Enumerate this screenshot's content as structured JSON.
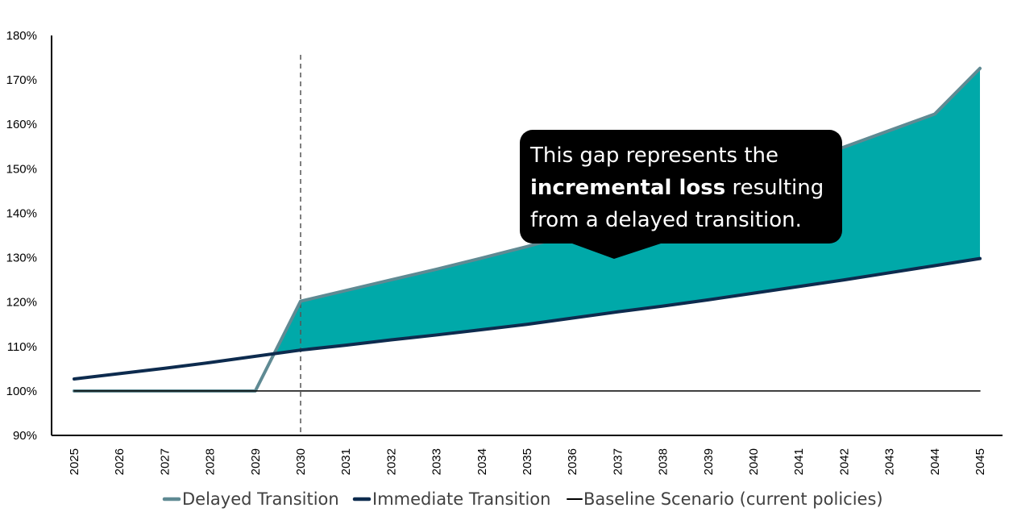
{
  "chart_data": {
    "type": "line",
    "title": "",
    "xlabel": "",
    "ylabel": "",
    "x": [
      2025,
      2026,
      2027,
      2028,
      2029,
      2030,
      2031,
      2032,
      2033,
      2034,
      2035,
      2036,
      2037,
      2038,
      2039,
      2040,
      2041,
      2042,
      2043,
      2044,
      2045
    ],
    "ylim": [
      90,
      180
    ],
    "y_ticks": [
      "90%",
      "100%",
      "110%",
      "120%",
      "130%",
      "140%",
      "150%",
      "160%",
      "170%",
      "180%"
    ],
    "y_tick_values": [
      90,
      100,
      110,
      120,
      130,
      140,
      150,
      160,
      170,
      180
    ],
    "series": [
      {
        "name": "Delayed Transition",
        "color": "#5f8a93",
        "values": [
          100,
          100,
          100,
          100,
          100,
          120.2,
          122.6,
          125.0,
          127.4,
          129.9,
          132.5,
          135.3,
          138.2,
          141.2,
          144.4,
          147.8,
          151.3,
          154.9,
          158.6,
          162.3,
          172.6
        ]
      },
      {
        "name": "Immediate Transition",
        "color": "#0d2b4e",
        "values": [
          102.7,
          103.9,
          105.1,
          106.4,
          107.8,
          109.2,
          110.3,
          111.5,
          112.6,
          113.8,
          115.0,
          116.4,
          117.8,
          119.1,
          120.5,
          122.0,
          123.5,
          125.0,
          126.6,
          128.2,
          129.8
        ]
      },
      {
        "name": "Baseline Scenario (current policies)",
        "color": "#000000",
        "values": [
          100,
          100,
          100,
          100,
          100,
          100,
          100,
          100,
          100,
          100,
          100,
          100,
          100,
          100,
          100,
          100,
          100,
          100,
          100,
          100,
          100
        ]
      }
    ],
    "gap_fill_color": "#00a9a9",
    "vertical_marker_x": 2030,
    "annotation": {
      "line1": "This gap represents the",
      "line2_bold": "incremental loss",
      "line2_rest": " resulting",
      "line3": "from a delayed transition."
    },
    "grid": false,
    "legend_position": "bottom"
  }
}
